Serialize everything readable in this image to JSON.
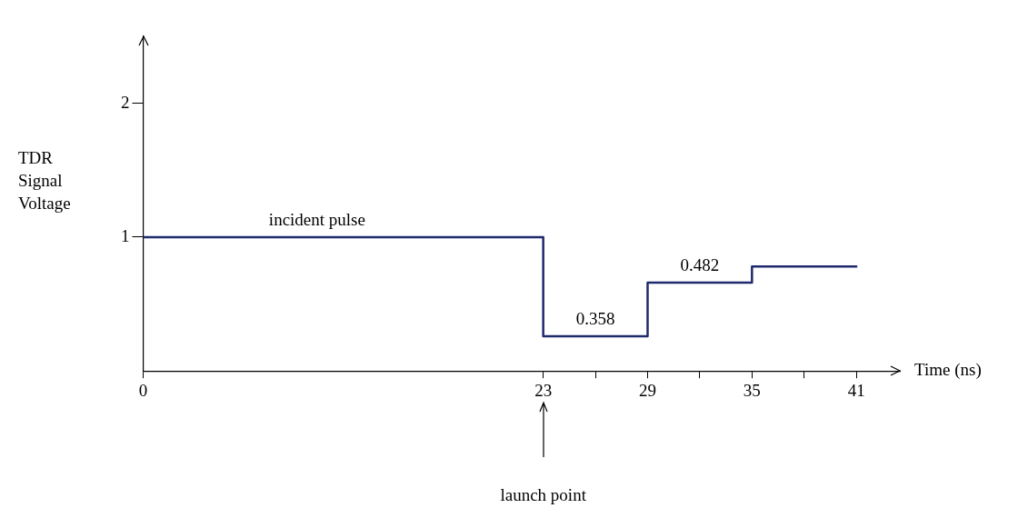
{
  "chart_data": {
    "type": "step",
    "xlabel": "Time (ns)",
    "ylabel": "TDR Signal Voltage",
    "x": [
      0,
      23,
      29,
      35,
      41
    ],
    "series": [
      {
        "color": "#1f2a6e",
        "values": [
          1,
          0.26,
          0.66,
          0.78,
          0.78
        ]
      }
    ],
    "xlim": [
      0,
      43.5
    ],
    "xticks": [
      0,
      23,
      {
        "value": 26,
        "label": null
      },
      29,
      {
        "value": 32,
        "label": null
      },
      35,
      {
        "value": 38,
        "label": null
      },
      41
    ],
    "ylim": [
      0,
      2.5
    ],
    "yticks": [
      1,
      2
    ],
    "grid": false,
    "legend": false,
    "marker": "none",
    "line_style": "solid",
    "annotations": [
      {
        "text": "incident pulse",
        "x": 10,
        "y": 1
      },
      {
        "text": "0.358",
        "x": 26,
        "y": 0.26
      },
      {
        "text": "0.482",
        "x": 32,
        "y": 0.66
      },
      "launch point"
    ]
  }
}
